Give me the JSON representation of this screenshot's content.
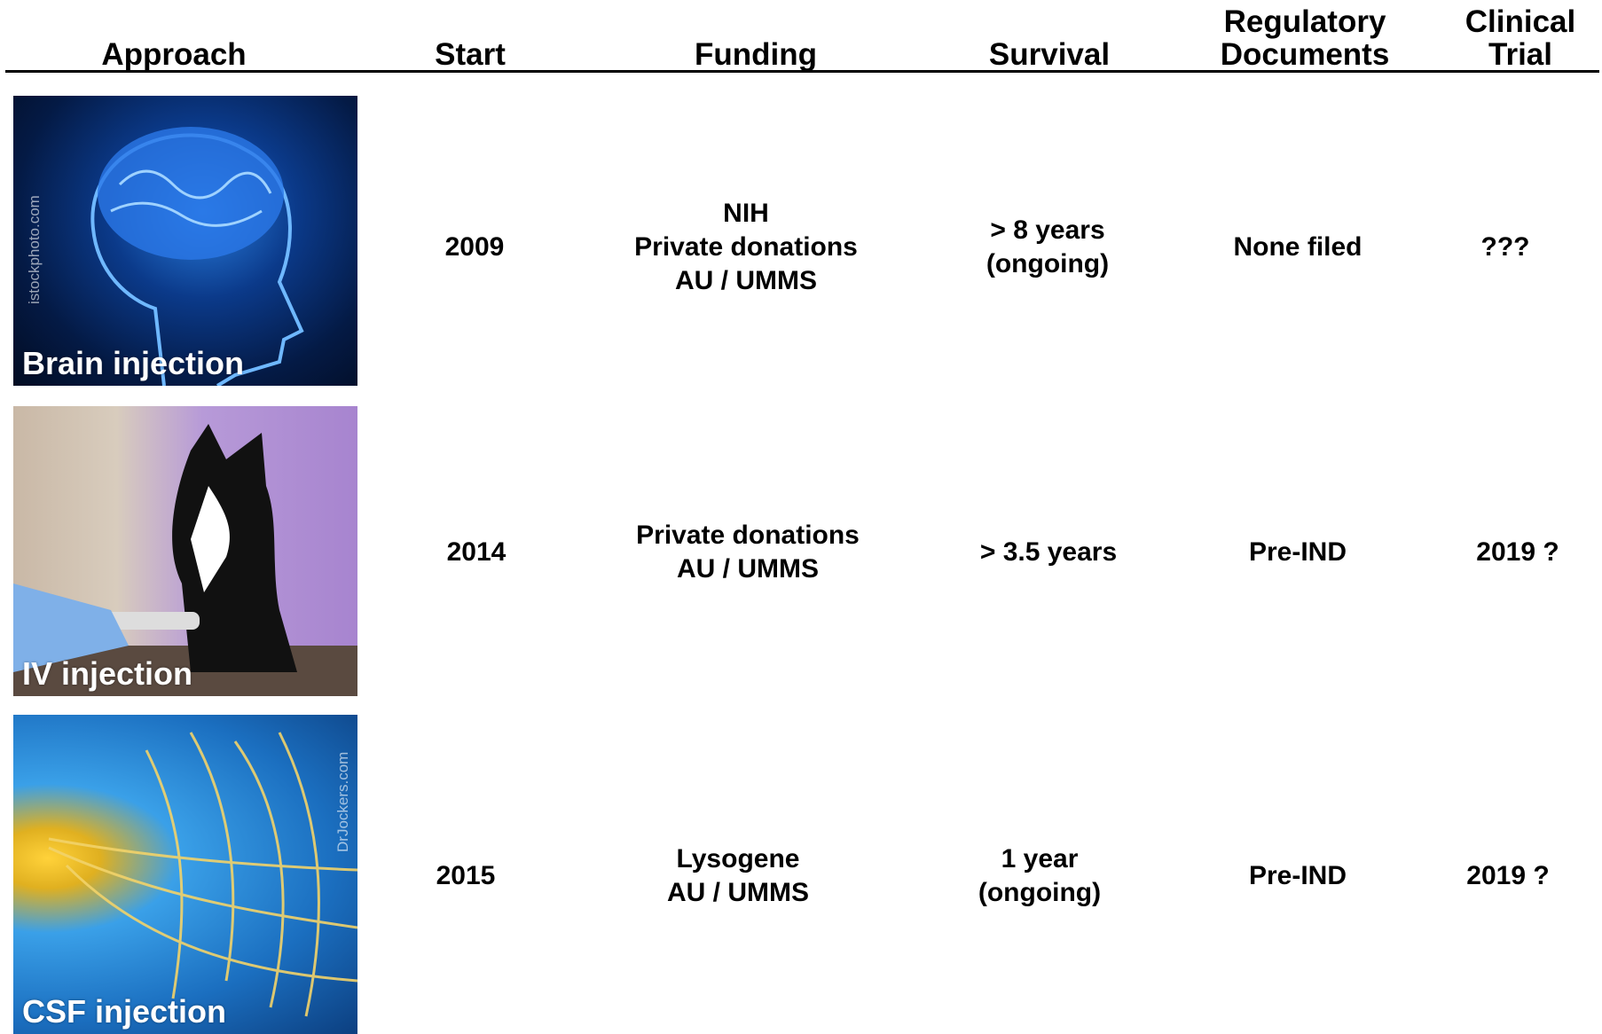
{
  "header": {
    "columns": [
      [
        "Approach"
      ],
      [
        "Start"
      ],
      [
        "Funding"
      ],
      [
        "Survival"
      ],
      [
        "Regulatory",
        "Documents"
      ],
      [
        "Clinical",
        "Trial"
      ]
    ]
  },
  "rows": [
    {
      "approach": "Brain injection",
      "credit": "istockphoto.com",
      "start": "2009",
      "funding": [
        "NIH",
        "Private donations",
        "AU / UMMS"
      ],
      "survival": [
        "> 8 years",
        "(ongoing)"
      ],
      "regulatory": "None filed",
      "clinical_trial": "???"
    },
    {
      "approach": "IV injection",
      "start": "2014",
      "funding": [
        "Private donations",
        "AU / UMMS"
      ],
      "survival": [
        "> 3.5 years"
      ],
      "regulatory": "Pre-IND",
      "clinical_trial": "2019 ?"
    },
    {
      "approach": "CSF injection",
      "credit": "DrJockers.com",
      "start": "2015",
      "funding": [
        "Lysogene",
        "AU / UMMS"
      ],
      "survival": [
        "1 year",
        "(ongoing)"
      ],
      "regulatory": "Pre-IND",
      "clinical_trial": "2019 ?"
    }
  ]
}
